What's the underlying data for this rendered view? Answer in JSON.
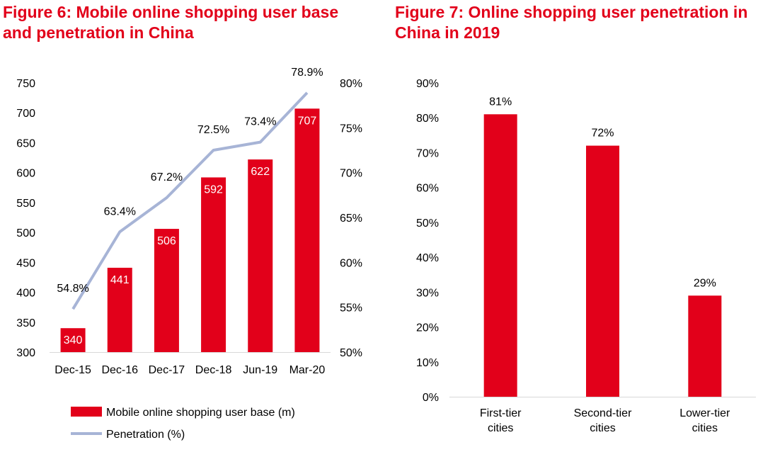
{
  "figure6": {
    "title": "Figure 6: Mobile online shopping user base and penetration in China"
  },
  "figure7": {
    "title": "Figure 7: Online shopping user penetration in China in 2019"
  },
  "colors": {
    "bar": "#e2001a",
    "line": "#a7b4d6",
    "title": "#e2001a"
  },
  "chart_data": [
    {
      "type": "bar",
      "title": "Figure 6: Mobile online shopping user base and penetration in China",
      "categories": [
        "Dec-15",
        "Dec-16",
        "Dec-17",
        "Dec-18",
        "Jun-19",
        "Mar-20"
      ],
      "series": [
        {
          "name": "Mobile online shopping user base (m)",
          "type": "bar",
          "axis": "left",
          "values": [
            340,
            441,
            506,
            592,
            622,
            707
          ],
          "labels": [
            "340",
            "441",
            "506",
            "592",
            "622",
            "707"
          ]
        },
        {
          "name": "Penetration (%)",
          "type": "line",
          "axis": "right",
          "values": [
            54.8,
            63.4,
            67.2,
            72.5,
            73.4,
            78.9
          ],
          "labels": [
            "54.8%",
            "63.4%",
            "67.2%",
            "72.5%",
            "73.4%",
            "78.9%"
          ]
        }
      ],
      "ylim": [
        300,
        750
      ],
      "yticks": [
        "300",
        "350",
        "400",
        "450",
        "500",
        "550",
        "600",
        "650",
        "700",
        "750"
      ],
      "y2lim": [
        50,
        80
      ],
      "y2ticks": [
        "50%",
        "55%",
        "60%",
        "65%",
        "70%",
        "75%",
        "80%"
      ],
      "legend": "bottom",
      "grid": false
    },
    {
      "type": "bar",
      "title": "Figure 7: Online shopping user penetration in China in 2019",
      "categories": [
        [
          "First-tier",
          "cities"
        ],
        [
          "Second-tier",
          "cities"
        ],
        [
          "Lower-tier",
          "cities"
        ]
      ],
      "values": [
        81,
        72,
        29
      ],
      "labels": [
        "81%",
        "72%",
        "29%"
      ],
      "ylim": [
        0,
        90
      ],
      "yticks": [
        "0%",
        "10%",
        "20%",
        "30%",
        "40%",
        "50%",
        "60%",
        "70%",
        "80%",
        "90%"
      ],
      "grid": false
    }
  ]
}
